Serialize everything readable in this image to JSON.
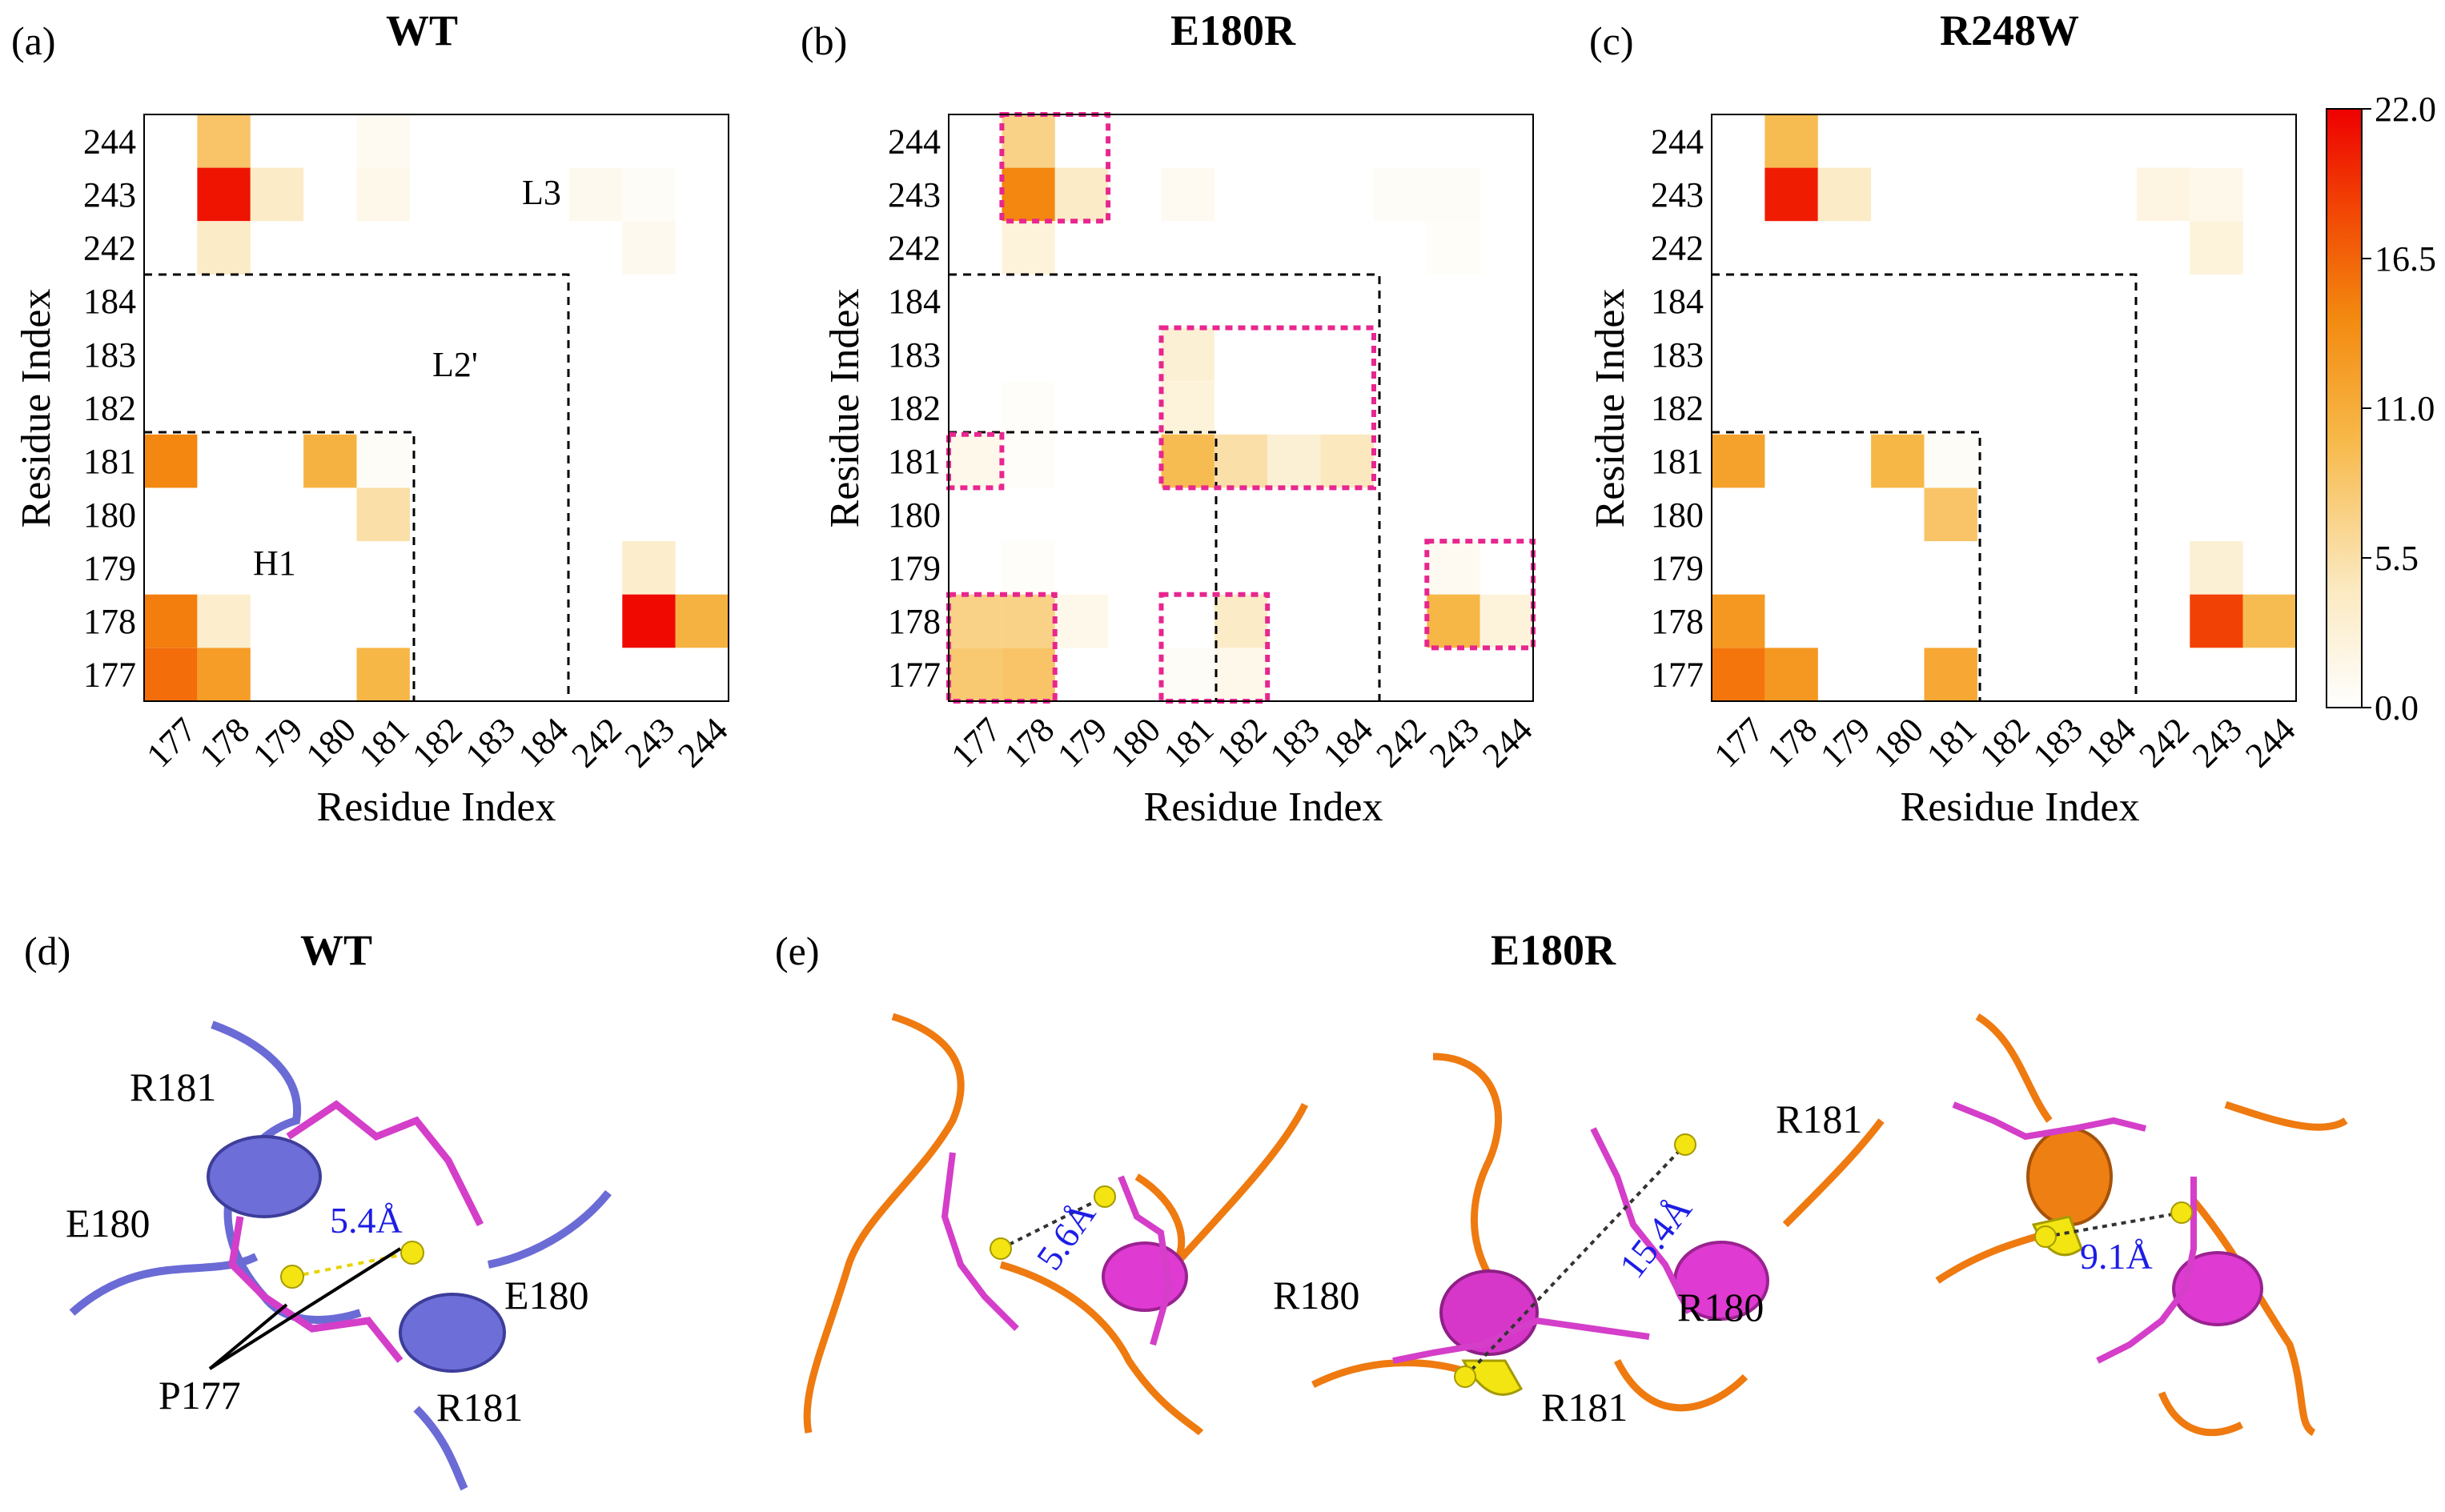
{
  "colorbar": {
    "min": 0.0,
    "max": 22.0,
    "ticks": [
      "22.0",
      "16.5",
      "11.0",
      "5.5",
      "0.0"
    ],
    "colormap": [
      "#ffffff",
      "#fbe9c0",
      "#f7b848",
      "#f38a10",
      "#f24a05",
      "#ee0000"
    ]
  },
  "chart_data": [
    {
      "type": "heatmap",
      "panel": "(a)",
      "title": "WT",
      "xlabel": "Residue Index",
      "ylabel": "Residue Index",
      "x_ticks": [
        "177",
        "178",
        "179",
        "180",
        "181",
        "182",
        "183",
        "184",
        "242",
        "243",
        "244"
      ],
      "y_ticks": [
        "244",
        "243",
        "242",
        "184",
        "183",
        "182",
        "181",
        "180",
        "179",
        "178",
        "177"
      ],
      "region_labels": [
        "L3",
        "L2'",
        "H1"
      ],
      "cells": [
        {
          "x": "178",
          "y": "244",
          "value": 8.5
        },
        {
          "x": "181",
          "y": "244",
          "value": 1.0
        },
        {
          "x": "178",
          "y": "243",
          "value": 21.0
        },
        {
          "x": "179",
          "y": "243",
          "value": 4.0
        },
        {
          "x": "181",
          "y": "243",
          "value": 1.5
        },
        {
          "x": "242",
          "y": "243",
          "value": 1.2
        },
        {
          "x": "243",
          "y": "243",
          "value": 0.6
        },
        {
          "x": "178",
          "y": "242",
          "value": 4.0
        },
        {
          "x": "243",
          "y": "242",
          "value": 1.2
        },
        {
          "x": "177",
          "y": "181",
          "value": 14.5
        },
        {
          "x": "180",
          "y": "181",
          "value": 10.5
        },
        {
          "x": "181",
          "y": "181",
          "value": 0.6
        },
        {
          "x": "181",
          "y": "180",
          "value": 5.5
        },
        {
          "x": "243",
          "y": "179",
          "value": 3.5
        },
        {
          "x": "177",
          "y": "178",
          "value": 15.0
        },
        {
          "x": "178",
          "y": "178",
          "value": 3.5
        },
        {
          "x": "243",
          "y": "178",
          "value": 21.5
        },
        {
          "x": "244",
          "y": "178",
          "value": 10.5
        },
        {
          "x": "177",
          "y": "177",
          "value": 16.0
        },
        {
          "x": "178",
          "y": "177",
          "value": 12.5
        },
        {
          "x": "181",
          "y": "177",
          "value": 10.0
        }
      ]
    },
    {
      "type": "heatmap",
      "panel": "(b)",
      "title": "E180R",
      "xlabel": "Residue Index",
      "ylabel": "Residue Index",
      "x_ticks": [
        "177",
        "178",
        "179",
        "180",
        "181",
        "182",
        "183",
        "184",
        "242",
        "243",
        "244"
      ],
      "y_ticks": [
        "244",
        "243",
        "242",
        "184",
        "183",
        "182",
        "181",
        "180",
        "179",
        "178",
        "177"
      ],
      "cells": [
        {
          "x": "178",
          "y": "244",
          "value": 7.0
        },
        {
          "x": "178",
          "y": "243",
          "value": 14.5
        },
        {
          "x": "179",
          "y": "243",
          "value": 4.0
        },
        {
          "x": "181",
          "y": "243",
          "value": 1.0
        },
        {
          "x": "242",
          "y": "243",
          "value": 0.6
        },
        {
          "x": "243",
          "y": "243",
          "value": 0.6
        },
        {
          "x": "178",
          "y": "242",
          "value": 2.5
        },
        {
          "x": "243",
          "y": "242",
          "value": 0.5
        },
        {
          "x": "181",
          "y": "183",
          "value": 3.0
        },
        {
          "x": "178",
          "y": "182",
          "value": 0.4
        },
        {
          "x": "181",
          "y": "182",
          "value": 2.5
        },
        {
          "x": "177",
          "y": "181",
          "value": 1.5
        },
        {
          "x": "178",
          "y": "181",
          "value": 0.4
        },
        {
          "x": "181",
          "y": "181",
          "value": 9.5
        },
        {
          "x": "182",
          "y": "181",
          "value": 5.5
        },
        {
          "x": "183",
          "y": "181",
          "value": 3.0
        },
        {
          "x": "184",
          "y": "181",
          "value": 4.5
        },
        {
          "x": "178",
          "y": "179",
          "value": 0.4
        },
        {
          "x": "243",
          "y": "179",
          "value": 1.0
        },
        {
          "x": "177",
          "y": "178",
          "value": 7.0
        },
        {
          "x": "178",
          "y": "178",
          "value": 7.0
        },
        {
          "x": "179",
          "y": "178",
          "value": 1.5
        },
        {
          "x": "182",
          "y": "178",
          "value": 4.0
        },
        {
          "x": "243",
          "y": "178",
          "value": 10.0
        },
        {
          "x": "244",
          "y": "178",
          "value": 2.5
        },
        {
          "x": "177",
          "y": "177",
          "value": 8.0
        },
        {
          "x": "178",
          "y": "177",
          "value": 8.5
        },
        {
          "x": "181",
          "y": "177",
          "value": 0.6
        },
        {
          "x": "182",
          "y": "177",
          "value": 1.5
        }
      ],
      "highlight_boxes": [
        {
          "x": [
            "178",
            "179"
          ],
          "y": [
            "243",
            "244"
          ]
        },
        {
          "x": [
            "181",
            "184"
          ],
          "y": [
            "181",
            "183"
          ]
        },
        {
          "x": [
            "177",
            "177"
          ],
          "y": [
            "181",
            "181"
          ]
        },
        {
          "x": [
            "177",
            "178"
          ],
          "y": [
            "177",
            "178"
          ]
        },
        {
          "x": [
            "181",
            "182"
          ],
          "y": [
            "177",
            "178"
          ]
        },
        {
          "x": [
            "243",
            "244"
          ],
          "y": [
            "178",
            "179"
          ]
        }
      ]
    },
    {
      "type": "heatmap",
      "panel": "(c)",
      "title": "R248W",
      "xlabel": "Residue Index",
      "ylabel": "Residue Index",
      "x_ticks": [
        "177",
        "178",
        "179",
        "180",
        "181",
        "182",
        "183",
        "184",
        "242",
        "243",
        "244"
      ],
      "y_ticks": [
        "244",
        "243",
        "242",
        "184",
        "183",
        "182",
        "181",
        "180",
        "179",
        "178",
        "177"
      ],
      "cells": [
        {
          "x": "178",
          "y": "244",
          "value": 9.5
        },
        {
          "x": "178",
          "y": "243",
          "value": 20.5
        },
        {
          "x": "179",
          "y": "243",
          "value": 4.0
        },
        {
          "x": "242",
          "y": "243",
          "value": 2.0
        },
        {
          "x": "243",
          "y": "243",
          "value": 1.5
        },
        {
          "x": "243",
          "y": "242",
          "value": 2.5
        },
        {
          "x": "177",
          "y": "181",
          "value": 12.0
        },
        {
          "x": "180",
          "y": "181",
          "value": 10.0
        },
        {
          "x": "181",
          "y": "181",
          "value": 0.6
        },
        {
          "x": "181",
          "y": "180",
          "value": 8.5
        },
        {
          "x": "243",
          "y": "179",
          "value": 3.0
        },
        {
          "x": "177",
          "y": "178",
          "value": 13.0
        },
        {
          "x": "243",
          "y": "178",
          "value": 18.5
        },
        {
          "x": "244",
          "y": "178",
          "value": 9.5
        },
        {
          "x": "177",
          "y": "177",
          "value": 15.5
        },
        {
          "x": "178",
          "y": "177",
          "value": 13.0
        },
        {
          "x": "181",
          "y": "177",
          "value": 11.5
        }
      ]
    }
  ],
  "structures": {
    "d": {
      "panel": "(d)",
      "title": "WT",
      "labels": [
        "R181",
        "E180",
        "E180",
        "P177",
        "R181"
      ],
      "distances": [
        "5.4Å"
      ]
    },
    "e": {
      "panel": "(e)",
      "title": "E180R",
      "labels": [
        "R181",
        "R180",
        "R180",
        "R181"
      ],
      "distances": [
        "5.6Å",
        "15.4Å",
        "9.1Å"
      ]
    }
  }
}
